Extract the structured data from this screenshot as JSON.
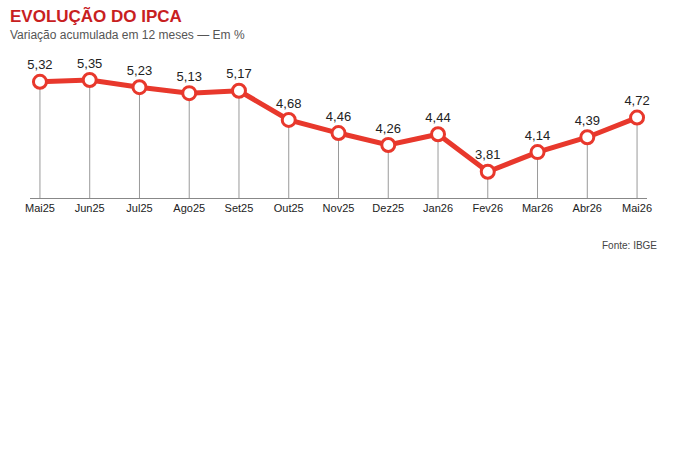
{
  "chart_data": {
    "type": "line",
    "title": "EVOLUÇÃO DO IPCA",
    "subtitle": "Variação acumulada em 12 meses — Em %",
    "annotations": [
      "Fonte: IBGE"
    ],
    "categories": [
      "Mai25",
      "Jun25",
      "Jul25",
      "Ago25",
      "Set25",
      "Out25",
      "Nov25",
      "Dez25",
      "Jan26",
      "Fev26",
      "Mar26",
      "Abr26",
      "Mai26"
    ],
    "values": [
      5.32,
      5.35,
      5.23,
      5.13,
      5.17,
      4.68,
      4.46,
      4.26,
      4.44,
      3.81,
      4.14,
      4.39,
      4.72
    ],
    "value_labels": [
      "5,32",
      "5,35",
      "5,23",
      "5,13",
      "5,17",
      "4,68",
      "4,46",
      "4,26",
      "4,44",
      "3,81",
      "4,14",
      "4,39",
      "4,72"
    ],
    "color": "#e8382c",
    "marker": "circle",
    "line_style": "solid",
    "data_labels": true,
    "tick_labels": "x",
    "grid": false,
    "ylim": [
      3.37,
      5.77
    ]
  }
}
